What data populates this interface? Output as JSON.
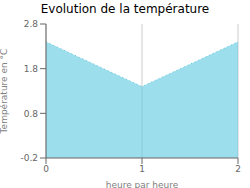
{
  "chart_data": {
    "type": "area",
    "title": "Evolution de la température",
    "x_label": "heure par heure",
    "y_label": "Température en °C",
    "x": [
      0,
      1,
      2
    ],
    "values": [
      2.4,
      1.4,
      2.4
    ],
    "color": "#5bc8e0",
    "line_style": "dotted",
    "xlim": [
      0,
      2
    ],
    "xticks": [
      0,
      1,
      2
    ],
    "ylim": [
      -0.2,
      2.8
    ],
    "yticks": [
      -0.2,
      0.8,
      1.8,
      2.8
    ],
    "grid": true
  }
}
